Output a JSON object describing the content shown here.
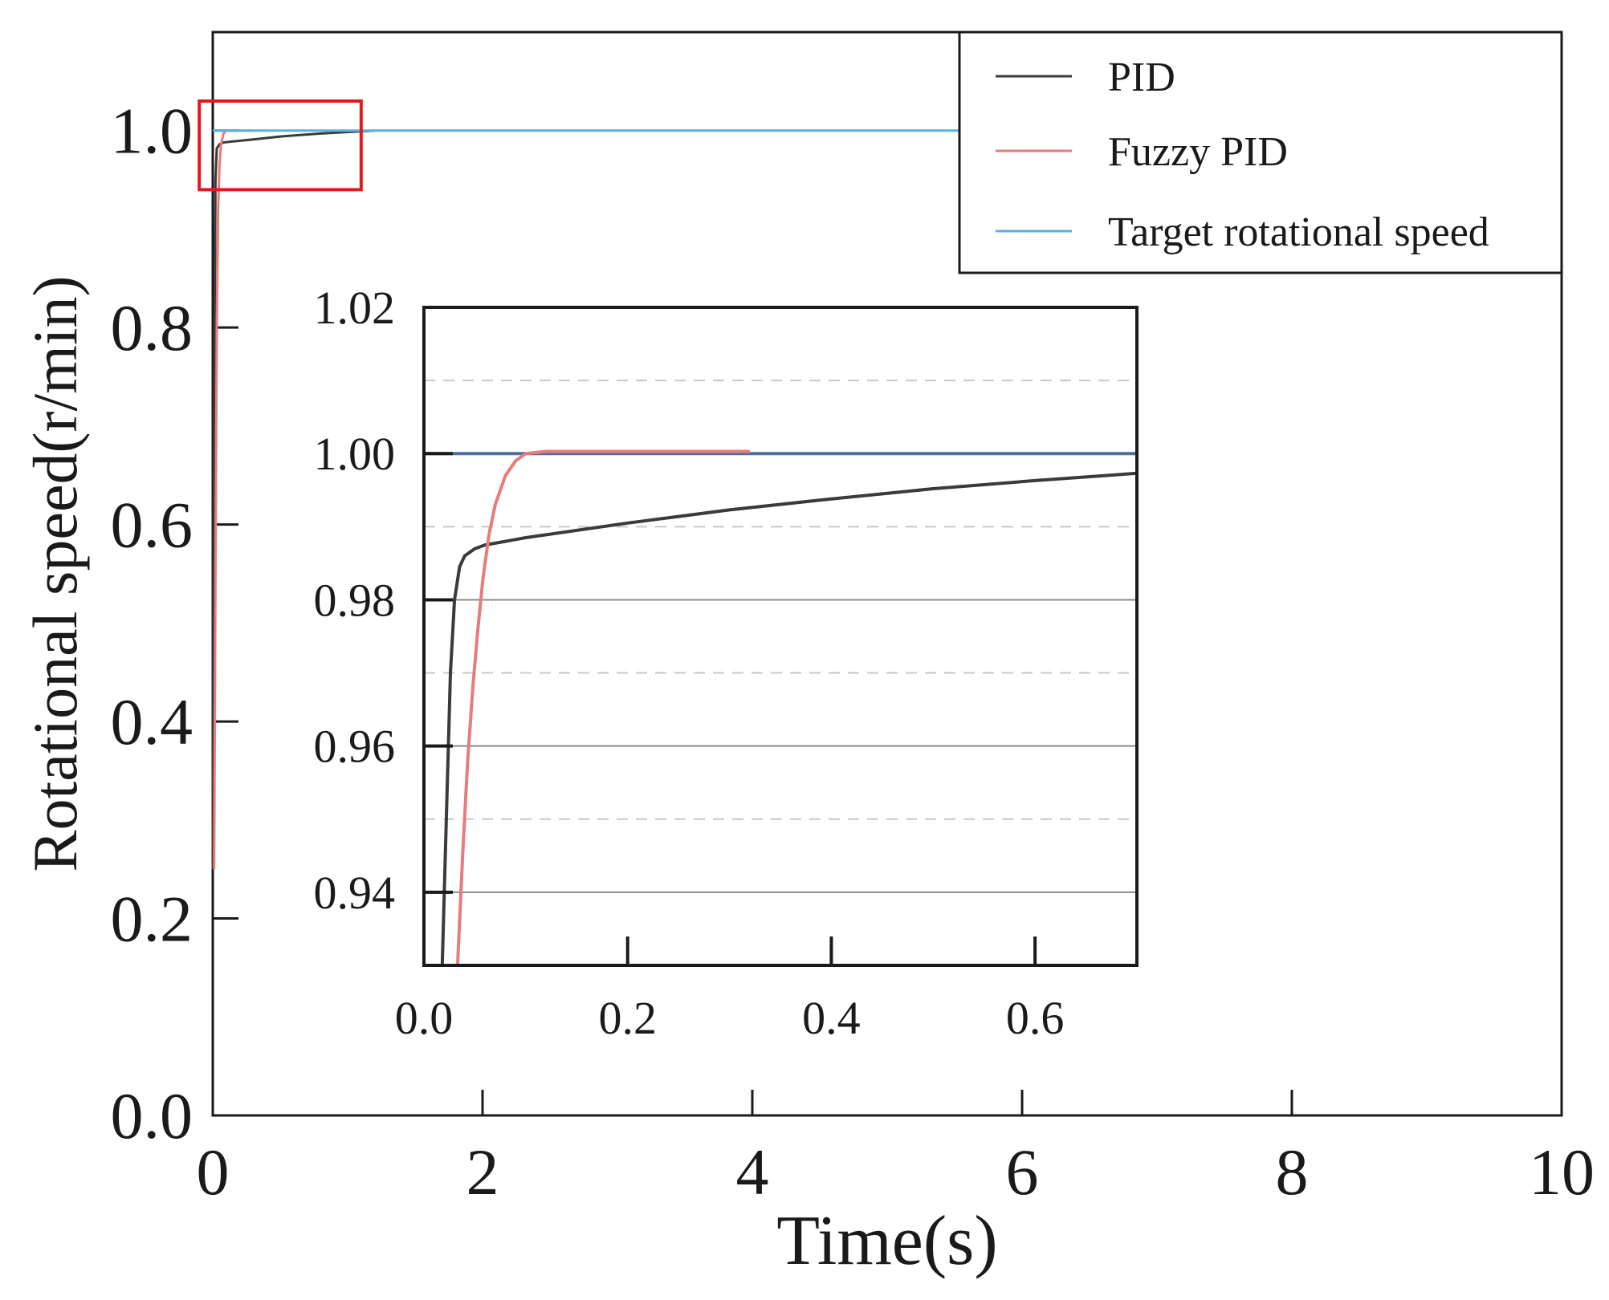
{
  "chart_data": [
    {
      "type": "line",
      "role": "main",
      "xlabel": "Time(s)",
      "ylabel": "Rotational speed(r/min)",
      "xlim": [
        0,
        10
      ],
      "ylim": [
        0,
        1.1
      ],
      "x_ticks": [
        0,
        2,
        4,
        6,
        8,
        10
      ],
      "x_tick_labels": [
        "0",
        "2",
        "4",
        "6",
        "8",
        "10"
      ],
      "y_ticks": [
        0.0,
        0.2,
        0.4,
        0.6,
        0.8,
        1.0
      ],
      "y_tick_labels": [
        "0.0",
        "0.2",
        "0.4",
        "0.6",
        "0.8",
        "1.0"
      ],
      "grid": false,
      "legend_position": "top-right",
      "zoom_box": {
        "x_range": [
          -0.1,
          1.1
        ],
        "y_range": [
          0.94,
          1.03
        ]
      },
      "series": [
        {
          "name": "PID",
          "color": "#3a3a3a",
          "x": [
            0,
            0.01,
            0.02,
            0.03,
            0.05,
            0.08,
            0.15,
            0.3,
            0.5,
            0.8,
            1.2
          ],
          "y": [
            0.25,
            0.7,
            0.95,
            0.982,
            0.986,
            0.988,
            0.989,
            0.991,
            0.994,
            0.997,
            1.0
          ]
        },
        {
          "name": "Fuzzy PID",
          "color": "#e87b7b",
          "x": [
            0.01,
            0.02,
            0.03,
            0.04,
            0.05,
            0.06,
            0.08,
            0.1,
            0.12,
            0.3
          ],
          "y": [
            0.25,
            0.55,
            0.8,
            0.92,
            0.965,
            0.985,
            0.997,
            1.0,
            1.0,
            1.0
          ]
        },
        {
          "name": "Target rotational speed",
          "color": "#5ab2e0",
          "x": [
            0,
            10
          ],
          "y": [
            1.0,
            1.0
          ]
        }
      ]
    },
    {
      "type": "line",
      "role": "inset",
      "xlabel": "",
      "ylabel": "",
      "xlim": [
        0,
        0.7
      ],
      "ylim": [
        0.93,
        1.02
      ],
      "x_ticks": [
        0.0,
        0.2,
        0.4,
        0.6
      ],
      "x_tick_labels": [
        "0.0",
        "0.2",
        "0.4",
        "0.6"
      ],
      "y_ticks": [
        0.94,
        0.96,
        0.98,
        1.0,
        1.02
      ],
      "y_tick_labels": [
        "0.94",
        "0.96",
        "0.98",
        "1.00",
        "1.02"
      ],
      "grid": true,
      "grid_major": [
        0.94,
        0.96,
        0.98,
        1.0
      ],
      "grid_minor": [
        0.95,
        0.97,
        0.99,
        1.01
      ],
      "series": [
        {
          "name": "PID",
          "color": "#3a3a3a",
          "x": [
            0.018,
            0.022,
            0.026,
            0.03,
            0.035,
            0.04,
            0.05,
            0.06,
            0.08,
            0.1,
            0.2,
            0.3,
            0.4,
            0.5,
            0.6,
            0.7
          ],
          "y": [
            0.93,
            0.95,
            0.97,
            0.98,
            0.9845,
            0.986,
            0.987,
            0.9875,
            0.988,
            0.9885,
            0.9905,
            0.9923,
            0.9938,
            0.9952,
            0.9963,
            0.9973
          ]
        },
        {
          "name": "Fuzzy PID",
          "color": "#e87b7b",
          "x": [
            0.033,
            0.038,
            0.043,
            0.048,
            0.053,
            0.058,
            0.064,
            0.07,
            0.08,
            0.09,
            0.1,
            0.12,
            0.2,
            0.32
          ],
          "y": [
            0.93,
            0.945,
            0.958,
            0.968,
            0.976,
            0.983,
            0.989,
            0.993,
            0.997,
            0.999,
            1.0,
            1.0003,
            1.0003,
            1.0003
          ]
        },
        {
          "name": "Target rotational speed",
          "color": "#4f6f9c",
          "x": [
            0,
            0.7
          ],
          "y": [
            1.0,
            1.0
          ]
        }
      ]
    }
  ]
}
